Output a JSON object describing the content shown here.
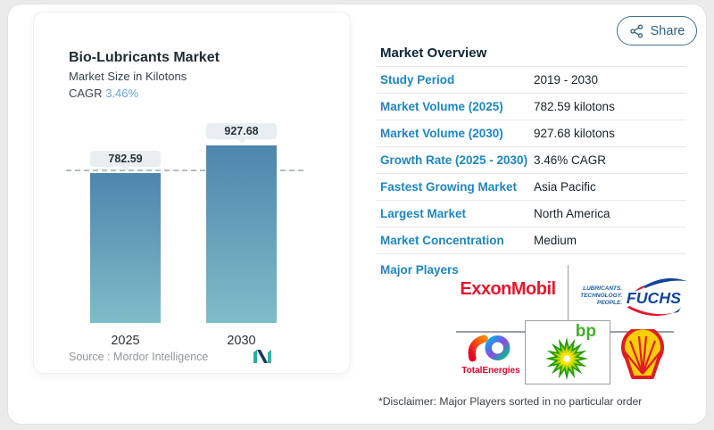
{
  "chart_panel": {
    "title": "Bio-Lubricants Market",
    "subtitle": "Market Size in Kilotons",
    "cagr_label": "CAGR",
    "cagr_value": "3.46%",
    "source_label": "Source :",
    "source_value": "Mordor Intelligence"
  },
  "chart_data": {
    "type": "bar",
    "title": "Bio-Lubricants Market",
    "subtitle": "Market Size in Kilotons",
    "unit": "kilotons",
    "categories": [
      "2025",
      "2030"
    ],
    "values": [
      782.59,
      927.68
    ],
    "data_labels": [
      "782.59",
      "927.68"
    ],
    "reference_line": 782.59,
    "cagr": "3.46%",
    "grid": false,
    "bar_color_top": "#4d86ad",
    "bar_color_bottom": "#7dbdc8"
  },
  "share": {
    "label": "Share"
  },
  "overview": {
    "title": "Market Overview",
    "rows": [
      {
        "label": "Study Period",
        "value": "2019 - 2030"
      },
      {
        "label": "Market Volume (2025)",
        "value": "782.59 kilotons"
      },
      {
        "label": "Market Volume (2030)",
        "value": "927.68 kilotons"
      },
      {
        "label": "Growth Rate (2025 - 2030)",
        "value": "3.46% CAGR"
      },
      {
        "label": "Fastest Growing Market",
        "value": "Asia Pacific"
      },
      {
        "label": "Largest Market",
        "value": "North America"
      },
      {
        "label": "Market Concentration",
        "value": "Medium"
      }
    ],
    "major_players_label": "Major Players",
    "players": [
      "ExxonMobil",
      "FUCHS",
      "TotalEnergies",
      "bp",
      "Shell"
    ],
    "fuchs_tagline": [
      "LUBRICANTS.",
      "TECHNOLOGY.",
      "PEOPLE."
    ],
    "disclaimer": "*Disclaimer: Major Players sorted in no particular order"
  },
  "colors": {
    "accent_blue_label": "#1e86bf",
    "cagr_value_blue": "#67a3d9",
    "title_navy": "#0d2433",
    "exxon_red": "#e8142d",
    "fuchs_blue": "#14459c",
    "bp_green": "#3faf29",
    "shell_yellow": "#fbce07",
    "shell_red": "#dd1d21",
    "totalenergies_red": "#e4002b",
    "share_blue": "#2d5f7e"
  }
}
